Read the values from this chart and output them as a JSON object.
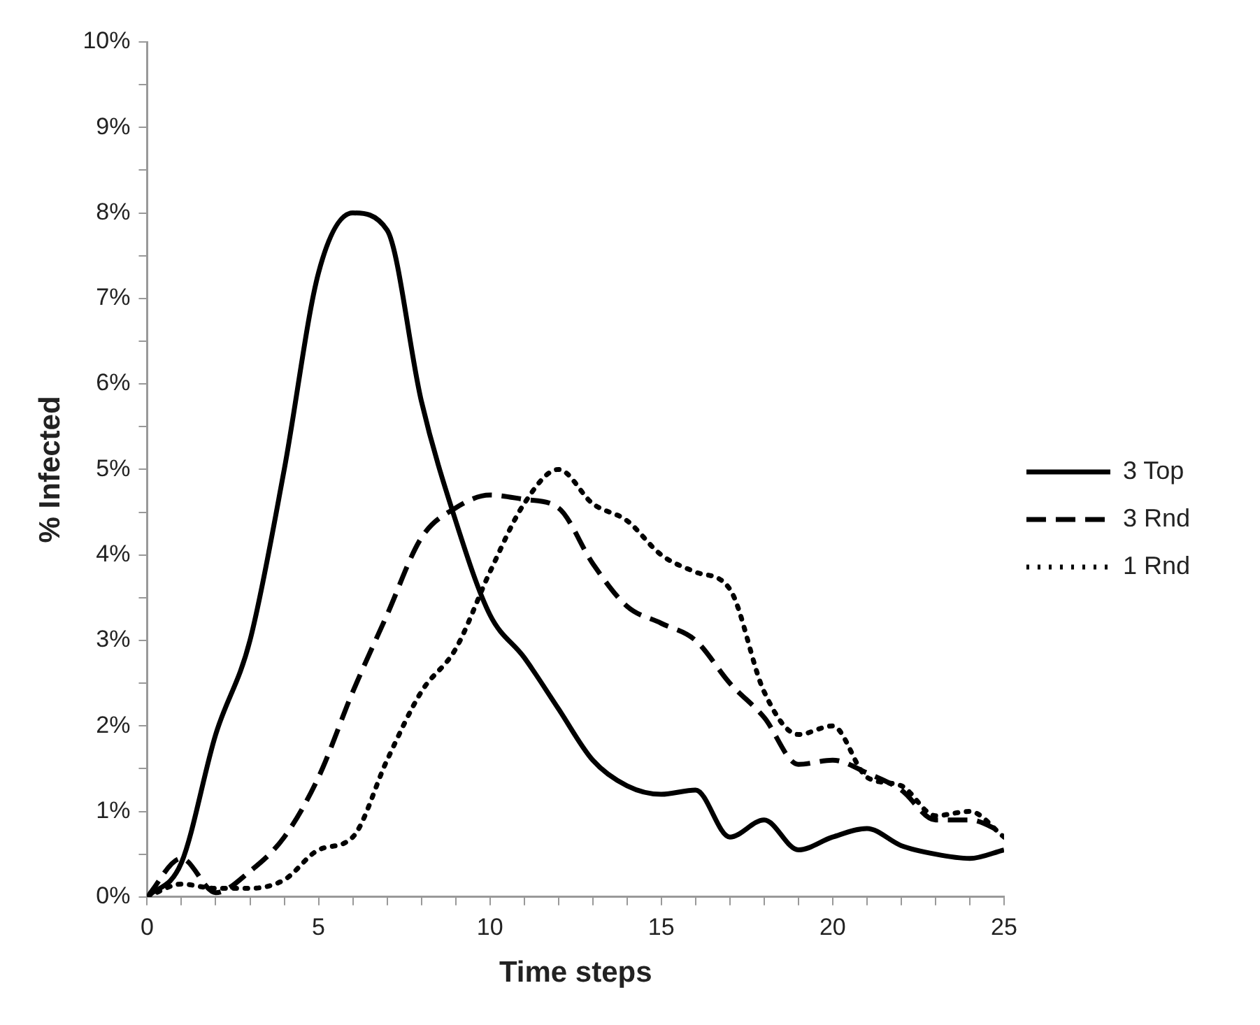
{
  "chart_data": {
    "type": "line",
    "xlabel": "Time steps",
    "ylabel": "% Infected",
    "x": [
      0,
      1,
      2,
      3,
      4,
      5,
      6,
      7,
      8,
      9,
      10,
      11,
      12,
      13,
      14,
      15,
      16,
      17,
      18,
      19,
      20,
      21,
      22,
      23,
      24,
      25
    ],
    "series": [
      {
        "name": "3 Top",
        "color": "#000000",
        "line_style": "solid",
        "values": [
          0,
          0.4,
          1.9,
          3.0,
          5.0,
          7.3,
          8.0,
          7.8,
          5.8,
          4.4,
          3.3,
          2.8,
          2.2,
          1.6,
          1.3,
          1.2,
          1.25,
          0.7,
          0.9,
          0.55,
          0.7,
          0.8,
          0.6,
          0.5,
          0.45,
          0.55
        ]
      },
      {
        "name": "3 Rnd",
        "color": "#000000",
        "line_style": "dashed",
        "values": [
          0,
          0.45,
          0.05,
          0.3,
          0.7,
          1.4,
          2.4,
          3.3,
          4.2,
          4.55,
          4.7,
          4.65,
          4.55,
          3.9,
          3.4,
          3.2,
          3.0,
          2.5,
          2.1,
          1.55,
          1.6,
          1.45,
          1.25,
          0.9,
          0.9,
          0.75
        ]
      },
      {
        "name": "1 Rnd",
        "color": "#000000",
        "line_style": "dotted",
        "values": [
          0,
          0.15,
          0.1,
          0.1,
          0.2,
          0.55,
          0.7,
          1.6,
          2.4,
          2.9,
          3.8,
          4.6,
          5.0,
          4.6,
          4.4,
          4.0,
          3.8,
          3.6,
          2.4,
          1.9,
          2.0,
          1.4,
          1.3,
          0.95,
          1.0,
          0.7
        ]
      }
    ],
    "xlim": [
      0,
      25
    ],
    "xticks": [
      0,
      {
        "value": 1,
        "label": null
      },
      {
        "value": 2,
        "label": null
      },
      {
        "value": 3,
        "label": null
      },
      {
        "value": 4,
        "label": null
      },
      5,
      {
        "value": 6,
        "label": null
      },
      {
        "value": 7,
        "label": null
      },
      {
        "value": 8,
        "label": null
      },
      {
        "value": 9,
        "label": null
      },
      10,
      {
        "value": 11,
        "label": null
      },
      {
        "value": 12,
        "label": null
      },
      {
        "value": 13,
        "label": null
      },
      {
        "value": 14,
        "label": null
      },
      15,
      {
        "value": 16,
        "label": null
      },
      {
        "value": 17,
        "label": null
      },
      {
        "value": 18,
        "label": null
      },
      {
        "value": 19,
        "label": null
      },
      20,
      {
        "value": 21,
        "label": null
      },
      {
        "value": 22,
        "label": null
      },
      {
        "value": 23,
        "label": null
      },
      {
        "value": 24,
        "label": null
      },
      25
    ],
    "ylim": [
      0,
      10
    ],
    "yticks": [
      {
        "value": 0,
        "label": "0%"
      },
      {
        "value": 0.5,
        "label": null
      },
      {
        "value": 1,
        "label": "1%"
      },
      {
        "value": 1.5,
        "label": null
      },
      {
        "value": 2,
        "label": "2%"
      },
      {
        "value": 2.5,
        "label": null
      },
      {
        "value": 3,
        "label": "3%"
      },
      {
        "value": 3.5,
        "label": null
      },
      {
        "value": 4,
        "label": "4%"
      },
      {
        "value": 4.5,
        "label": null
      },
      {
        "value": 5,
        "label": "5%"
      },
      {
        "value": 5.5,
        "label": null
      },
      {
        "value": 6,
        "label": "6%"
      },
      {
        "value": 6.5,
        "label": null
      },
      {
        "value": 7,
        "label": "7%"
      },
      {
        "value": 7.5,
        "label": null
      },
      {
        "value": 8,
        "label": "8%"
      },
      {
        "value": 8.5,
        "label": null
      },
      {
        "value": 9,
        "label": "9%"
      },
      {
        "value": 9.5,
        "label": null
      },
      {
        "value": 10,
        "label": "10%"
      }
    ],
    "grid": false,
    "legend": "right",
    "marker": "none"
  }
}
